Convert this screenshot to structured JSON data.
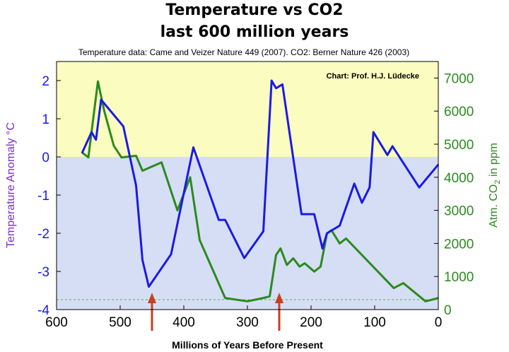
{
  "title_line1": "Temperature vs CO2",
  "title_line2": "last 600 million years",
  "subtitle": "Temperature data: Came and Veizer Nature 449 (2007). CO2:  Berner Nature 426 (2003)",
  "colors": {
    "warm_bg": "#fbfcc0",
    "cool_bg": "#d6def5",
    "temperature": "#1a1ae6",
    "co2": "#2b8a1e",
    "arrow": "#c8401e",
    "dashed": "#5fb55f"
  },
  "chart_data": {
    "type": "line",
    "credit": "Chart: Prof. H.J. Lüdecke",
    "xlabel": "Millions of Years Before Present",
    "ylabel_left": "Temperature Anomaly °C",
    "ylabel_right_parts": [
      "Atm. CO",
      "2",
      " in ppm"
    ],
    "xlim": [
      600,
      0
    ],
    "ylim_left": [
      -4,
      2.5
    ],
    "ylim_right": [
      0,
      7500
    ],
    "x_ticks": [
      600,
      500,
      400,
      300,
      200,
      100,
      0
    ],
    "y_left_ticks": [
      2,
      1,
      0,
      -1,
      -2,
      -3,
      -4
    ],
    "y_right_ticks": [
      7000,
      6000,
      5000,
      4000,
      3000,
      2000,
      1000,
      0
    ],
    "reference_co2_ppm": 300,
    "arrows_at": [
      450,
      250
    ],
    "series": [
      {
        "axis": "left",
        "points": [
          [
            560,
            0.1
          ],
          [
            545,
            0.65
          ],
          [
            538,
            0.45
          ],
          [
            530,
            1.5
          ],
          [
            505,
            1.0
          ],
          [
            495,
            0.8
          ],
          [
            475,
            -0.75
          ],
          [
            465,
            -2.7
          ],
          [
            455,
            -3.4
          ],
          [
            420,
            -2.55
          ],
          [
            385,
            0.25
          ],
          [
            345,
            -1.65
          ],
          [
            335,
            -1.65
          ],
          [
            305,
            -2.65
          ],
          [
            275,
            -1.95
          ],
          [
            262,
            2.0
          ],
          [
            255,
            1.8
          ],
          [
            245,
            1.9
          ],
          [
            215,
            -1.5
          ],
          [
            195,
            -1.5
          ],
          [
            182,
            -2.4
          ],
          [
            175,
            -2.0
          ],
          [
            155,
            -1.8
          ],
          [
            132,
            -0.7
          ],
          [
            120,
            -1.2
          ],
          [
            108,
            -0.8
          ],
          [
            102,
            0.65
          ],
          [
            80,
            0.05
          ],
          [
            72,
            0.28
          ],
          [
            30,
            -0.8
          ],
          [
            0,
            -0.2
          ]
        ]
      },
      {
        "axis": "right",
        "points": [
          [
            560,
            4750
          ],
          [
            550,
            4600
          ],
          [
            535,
            6900
          ],
          [
            525,
            6000
          ],
          [
            510,
            4950
          ],
          [
            498,
            4600
          ],
          [
            475,
            4650
          ],
          [
            465,
            4200
          ],
          [
            435,
            4450
          ],
          [
            410,
            3000
          ],
          [
            390,
            4000
          ],
          [
            375,
            2100
          ],
          [
            335,
            350
          ],
          [
            300,
            250
          ],
          [
            275,
            350
          ],
          [
            265,
            400
          ],
          [
            255,
            1650
          ],
          [
            248,
            1850
          ],
          [
            238,
            1350
          ],
          [
            228,
            1550
          ],
          [
            218,
            1300
          ],
          [
            210,
            1400
          ],
          [
            195,
            1150
          ],
          [
            185,
            1300
          ],
          [
            175,
            2300
          ],
          [
            168,
            2400
          ],
          [
            155,
            2000
          ],
          [
            145,
            2150
          ],
          [
            70,
            650
          ],
          [
            55,
            800
          ],
          [
            20,
            250
          ],
          [
            0,
            350
          ]
        ]
      }
    ]
  }
}
